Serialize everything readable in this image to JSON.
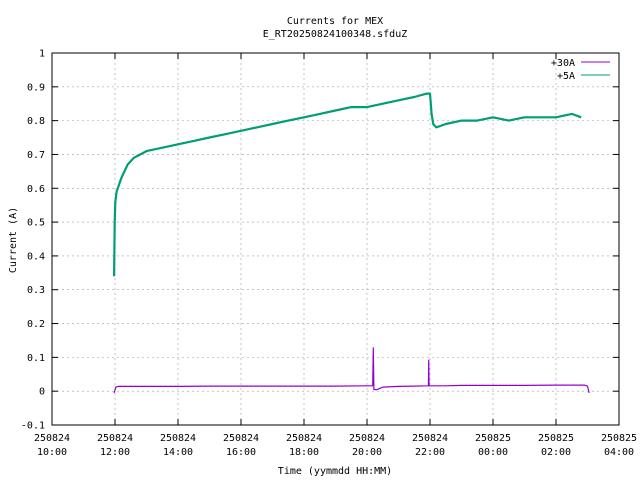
{
  "chart_data": {
    "type": "line",
    "title": "Currents for MEX",
    "subtitle": "E_RT20250824100348.sfduZ",
    "xlabel": "Time (yymmdd HH:MM)",
    "ylabel": "Current (A)",
    "xlim_hours": [
      10,
      28
    ],
    "ylim": [
      -0.1,
      1.0
    ],
    "grid": true,
    "legend_position": "top-right",
    "x_ticks": [
      {
        "date": "250824",
        "time": "10:00",
        "h": 10
      },
      {
        "date": "250824",
        "time": "12:00",
        "h": 12
      },
      {
        "date": "250824",
        "time": "14:00",
        "h": 14
      },
      {
        "date": "250824",
        "time": "16:00",
        "h": 16
      },
      {
        "date": "250824",
        "time": "18:00",
        "h": 18
      },
      {
        "date": "250824",
        "time": "20:00",
        "h": 20
      },
      {
        "date": "250824",
        "time": "22:00",
        "h": 22
      },
      {
        "date": "250825",
        "time": "00:00",
        "h": 24
      },
      {
        "date": "250825",
        "time": "02:00",
        "h": 26
      },
      {
        "date": "250825",
        "time": "04:00",
        "h": 28
      }
    ],
    "y_ticks": [
      {
        "v": 1,
        "label": "1"
      },
      {
        "v": 0.9,
        "label": "0.9"
      },
      {
        "v": 0.8,
        "label": "0.8"
      },
      {
        "v": 0.7,
        "label": "0.7"
      },
      {
        "v": 0.6,
        "label": "0.6"
      },
      {
        "v": 0.5,
        "label": "0.5"
      },
      {
        "v": 0.4,
        "label": "0.4"
      },
      {
        "v": 0.3,
        "label": "0.3"
      },
      {
        "v": 0.2,
        "label": "0.2"
      },
      {
        "v": 0.1,
        "label": "0.1"
      },
      {
        "v": 0,
        "label": "0"
      },
      {
        "v": -0.1,
        "label": "-0.1"
      }
    ],
    "series": [
      {
        "name": "+30A",
        "color": "#9400d3",
        "x_hours": [
          11.97,
          12.03,
          12.1,
          13,
          14,
          15,
          16,
          17,
          18,
          19,
          20.0,
          20.18,
          20.2,
          20.22,
          20.24,
          20.3,
          20.5,
          21.0,
          21.5,
          21.95,
          21.96,
          21.97,
          22.5,
          23,
          24,
          25,
          26,
          26.9,
          27.0,
          27.05
        ],
        "values": [
          -0.005,
          0.012,
          0.014,
          0.014,
          0.014,
          0.015,
          0.015,
          0.015,
          0.015,
          0.015,
          0.016,
          0.016,
          0.128,
          0.005,
          0.005,
          0.004,
          0.012,
          0.014,
          0.015,
          0.016,
          0.092,
          0.016,
          0.016,
          0.017,
          0.017,
          0.017,
          0.018,
          0.018,
          0.015,
          -0.005
        ]
      },
      {
        "name": "+5A",
        "color": "#009e73",
        "x_hours": [
          11.97,
          11.99,
          12.01,
          12.05,
          12.2,
          12.4,
          12.6,
          12.8,
          13.0,
          13.5,
          14.0,
          14.5,
          15.0,
          15.5,
          16.0,
          16.5,
          17.0,
          17.5,
          18.0,
          18.5,
          19.0,
          19.5,
          20.0,
          20.5,
          21.0,
          21.5,
          21.9,
          22.0,
          22.05,
          22.1,
          22.2,
          22.5,
          23.0,
          23.5,
          24.0,
          24.5,
          25.0,
          25.5,
          26.0,
          26.5,
          26.8
        ],
        "values": [
          0.34,
          0.5,
          0.56,
          0.59,
          0.63,
          0.67,
          0.69,
          0.7,
          0.71,
          0.72,
          0.73,
          0.74,
          0.75,
          0.76,
          0.77,
          0.78,
          0.79,
          0.8,
          0.81,
          0.82,
          0.83,
          0.84,
          0.84,
          0.85,
          0.86,
          0.87,
          0.88,
          0.88,
          0.82,
          0.79,
          0.78,
          0.79,
          0.8,
          0.8,
          0.81,
          0.8,
          0.81,
          0.81,
          0.81,
          0.82,
          0.81
        ]
      }
    ]
  }
}
